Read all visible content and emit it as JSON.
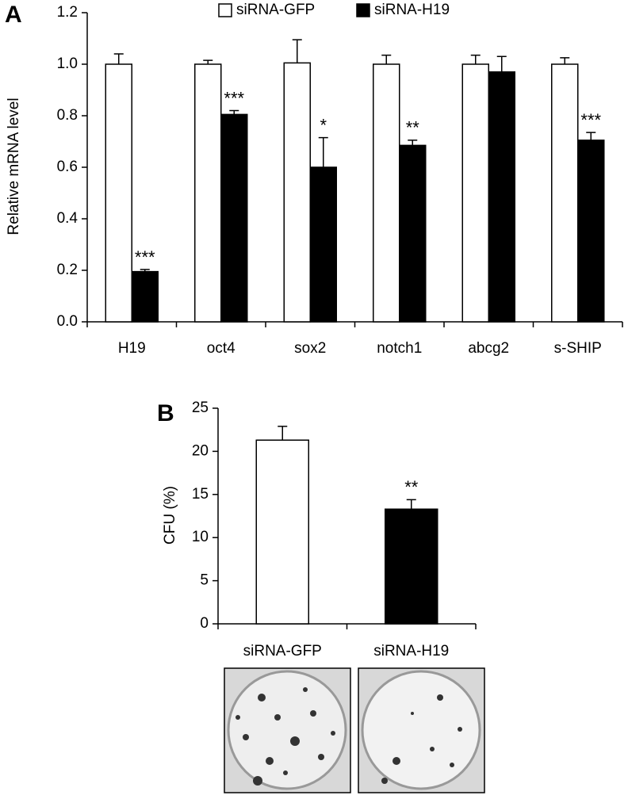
{
  "chart_data": [
    {
      "type": "bar",
      "panel_label": "A",
      "ylabel": "Relative mRNA level",
      "categories": [
        "H19",
        "oct4",
        "sox2",
        "notch1",
        "abcg2",
        "s-SHIP"
      ],
      "series": [
        {
          "name": "siRNA-GFP",
          "color": "#ffffff",
          "values": [
            1.0,
            1.0,
            1.005,
            1.0,
            1.0,
            1.0
          ],
          "errors": [
            0.04,
            0.015,
            0.09,
            0.035,
            0.035,
            0.025
          ]
        },
        {
          "name": "siRNA-H19",
          "color": "#000000",
          "values": [
            0.195,
            0.805,
            0.6,
            0.685,
            0.97,
            0.705
          ],
          "errors": [
            0.008,
            0.015,
            0.115,
            0.02,
            0.06,
            0.03
          ],
          "annotations": [
            "***",
            "***",
            "*",
            "**",
            null,
            "***"
          ]
        }
      ],
      "ylim": [
        0,
        1.2
      ],
      "yticks": [
        {
          "value": 0,
          "label": "0.0"
        },
        0.2,
        0.4,
        0.6,
        0.8,
        {
          "value": 1,
          "label": "1.0"
        },
        1.2
      ],
      "legend": "top"
    },
    {
      "type": "bar",
      "panel_label": "B",
      "ylabel": "CFU (%)",
      "categories": [
        "siRNA-GFP",
        "siRNA-H19"
      ],
      "values": [
        21.3,
        13.3
      ],
      "errors": [
        1.6,
        1.1
      ],
      "colors": [
        "#ffffff",
        "#000000"
      ],
      "annotations": [
        null,
        "**"
      ],
      "ylim": [
        0,
        25
      ],
      "yticks": [
        0,
        5,
        10,
        15,
        20,
        25
      ]
    }
  ]
}
